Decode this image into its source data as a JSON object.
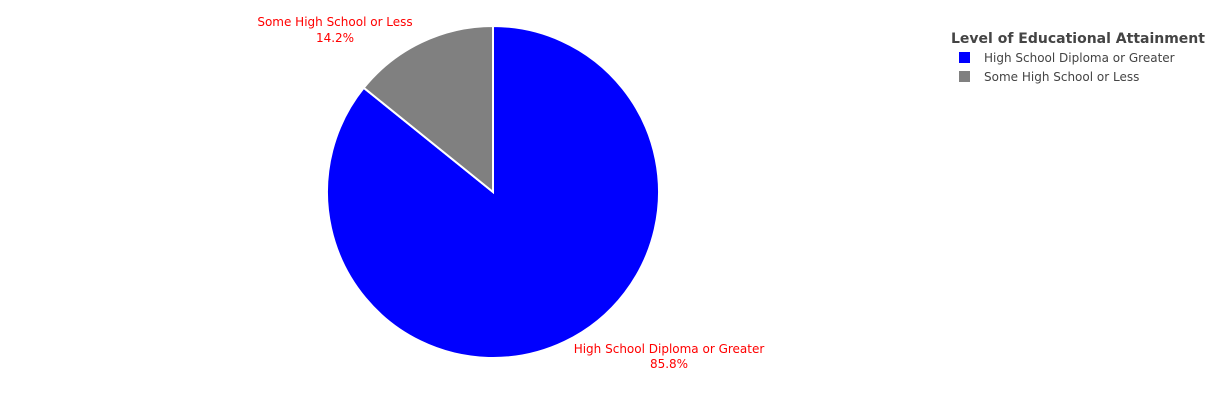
{
  "chart_data": {
    "type": "pie",
    "categories": [
      "High School Diploma or Greater",
      "Some High School or Less"
    ],
    "values": [
      85.8,
      14.2
    ],
    "value_labels": [
      "85.8%",
      "14.2%"
    ],
    "colors": [
      "#0000ff",
      "#808080"
    ],
    "label_color": "#ff0000",
    "legend": {
      "title": "Level of Educational Attainment",
      "placement": "top-right",
      "entries": [
        "High School Diploma or Greater",
        "Some High School or Less"
      ]
    },
    "direction": "clockwise",
    "start": "top",
    "title": "",
    "xlabel": "",
    "ylabel": ""
  }
}
